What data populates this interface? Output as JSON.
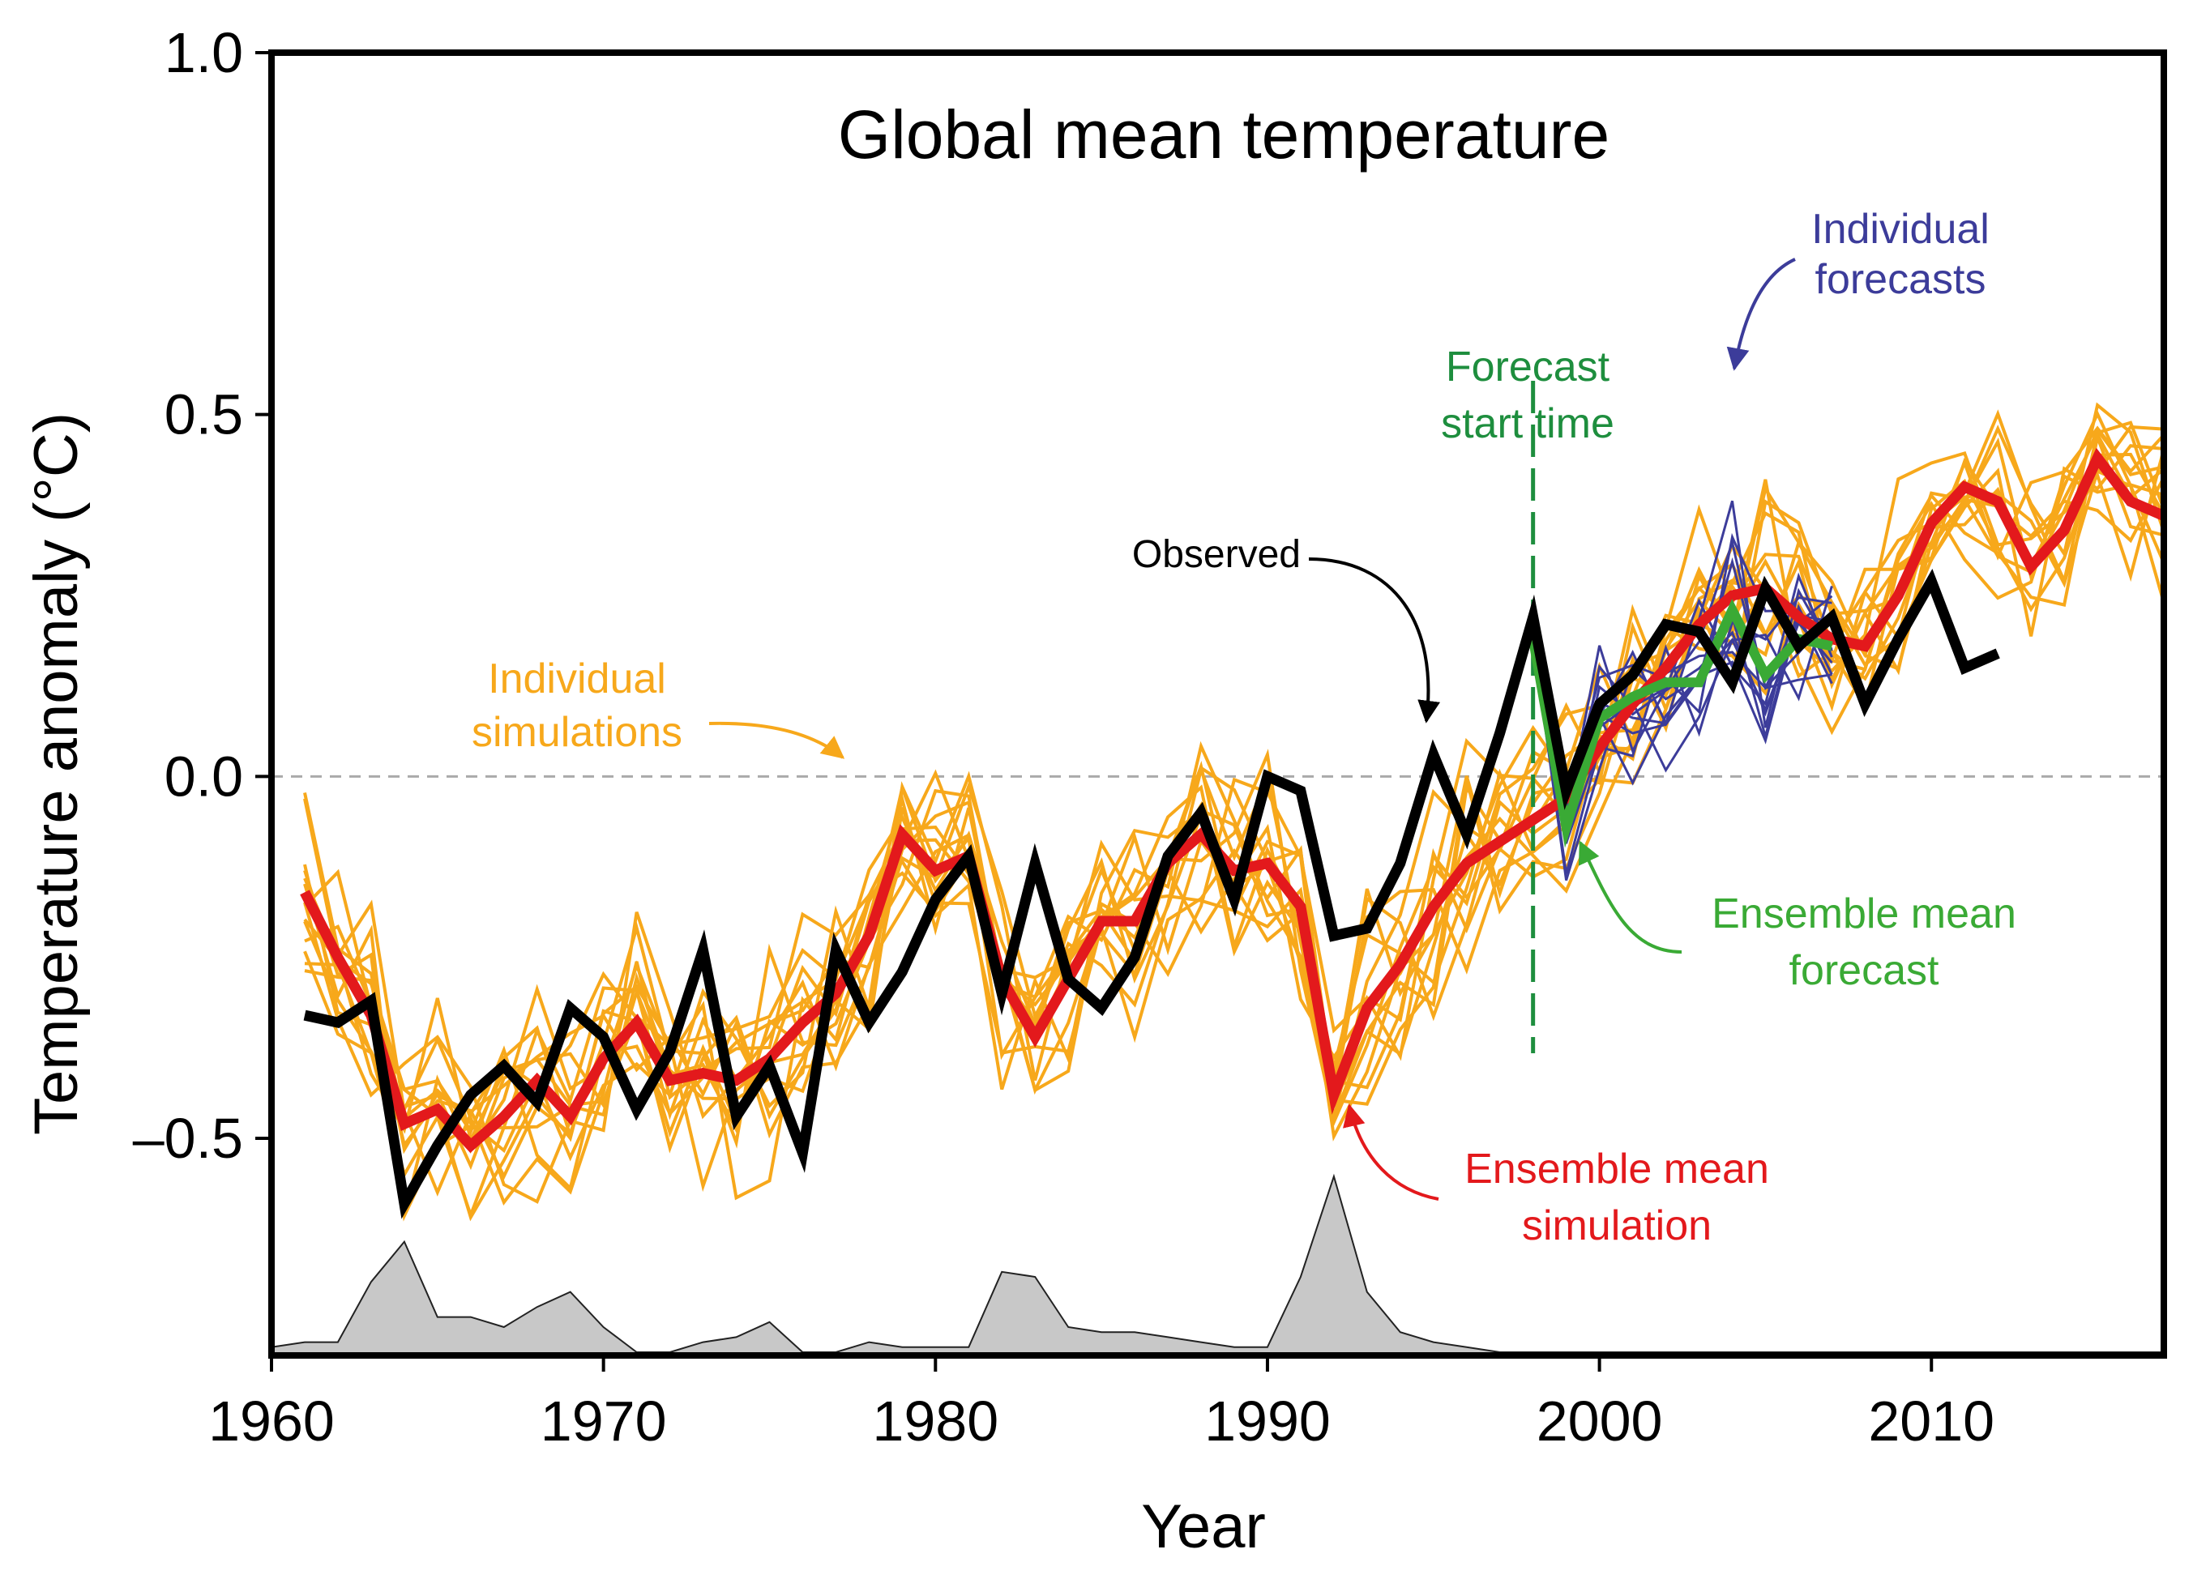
{
  "chart_data": {
    "type": "line",
    "title": "Global mean temperature",
    "xlabel": "Year",
    "ylabel": "Temperature anomaly (°C)",
    "xlim": [
      1960,
      2017
    ],
    "ylim": [
      -0.8,
      1.0
    ],
    "x_ticks": [
      1960,
      1970,
      1980,
      1990,
      2000,
      2010
    ],
    "y_ticks": [
      1.0,
      0.5,
      0.0,
      -0.5
    ],
    "y_tick_labels": [
      "1.0",
      "0.5",
      "0.0",
      "–0.5"
    ],
    "zero_line": true,
    "forecast_start_year": 1998,
    "annotations": {
      "individual_simulations": "Individual\nsimulations",
      "observed": "Observed",
      "forecast_start": "Forecast\nstart time",
      "individual_forecasts": "Individual\nforecasts",
      "ensemble_mean_forecast": "Ensemble mean\nforecast",
      "ensemble_mean_simulation": "Ensemble mean\nsimulation"
    },
    "colors": {
      "observed": "#000000",
      "ensemble_mean_simulation": "#e3191c",
      "individual_simulations": "#f7a81b",
      "individual_forecasts": "#3c3c9a",
      "ensemble_mean_forecast": "#3aaa35",
      "forecast_start": "#1e8e3e",
      "volcanic": "#c8c8c8"
    },
    "series": [
      {
        "name": "Observed",
        "x": [
          1961,
          1962,
          1963,
          1964,
          1965,
          1966,
          1967,
          1968,
          1969,
          1970,
          1971,
          1972,
          1973,
          1974,
          1975,
          1976,
          1977,
          1978,
          1979,
          1980,
          1981,
          1982,
          1983,
          1984,
          1985,
          1986,
          1987,
          1988,
          1989,
          1990,
          1991,
          1992,
          1993,
          1994,
          1995,
          1996,
          1997,
          1998,
          1999,
          2000,
          2001,
          2002,
          2003,
          2004,
          2005,
          2006,
          2007,
          2008,
          2009,
          2010,
          2011,
          2012
        ],
        "values": [
          -0.33,
          -0.34,
          -0.31,
          -0.59,
          -0.51,
          -0.44,
          -0.4,
          -0.45,
          -0.32,
          -0.36,
          -0.46,
          -0.38,
          -0.24,
          -0.47,
          -0.4,
          -0.52,
          -0.24,
          -0.34,
          -0.27,
          -0.17,
          -0.11,
          -0.3,
          -0.12,
          -0.28,
          -0.32,
          -0.25,
          -0.11,
          -0.05,
          -0.17,
          0.0,
          -0.02,
          -0.22,
          -0.21,
          -0.12,
          0.03,
          -0.08,
          0.06,
          0.22,
          -0.02,
          0.1,
          0.14,
          0.21,
          0.2,
          0.13,
          0.26,
          0.18,
          0.22,
          0.1,
          0.19,
          0.27,
          0.15,
          0.17
        ]
      },
      {
        "name": "Ensemble mean simulation",
        "x": [
          1961,
          1962,
          1963,
          1964,
          1965,
          1966,
          1967,
          1968,
          1969,
          1970,
          1971,
          1972,
          1973,
          1974,
          1975,
          1976,
          1977,
          1978,
          1979,
          1980,
          1981,
          1982,
          1983,
          1984,
          1985,
          1986,
          1987,
          1988,
          1989,
          1990,
          1991,
          1992,
          1993,
          1994,
          1995,
          1996,
          1997,
          1998,
          1999,
          2000,
          2001,
          2002,
          2003,
          2004,
          2005,
          2006,
          2007,
          2008,
          2009,
          2010,
          2011,
          2012,
          2013,
          2014,
          2015,
          2016,
          2017
        ],
        "values": [
          -0.16,
          -0.25,
          -0.33,
          -0.48,
          -0.46,
          -0.51,
          -0.47,
          -0.42,
          -0.47,
          -0.39,
          -0.34,
          -0.42,
          -0.41,
          -0.42,
          -0.39,
          -0.34,
          -0.3,
          -0.22,
          -0.08,
          -0.13,
          -0.11,
          -0.28,
          -0.36,
          -0.28,
          -0.2,
          -0.2,
          -0.12,
          -0.08,
          -0.13,
          -0.12,
          -0.18,
          -0.44,
          -0.32,
          -0.26,
          -0.18,
          -0.12,
          -0.09,
          -0.06,
          -0.03,
          0.04,
          0.1,
          0.15,
          0.21,
          0.25,
          0.26,
          0.22,
          0.19,
          0.18,
          0.25,
          0.35,
          0.4,
          0.38,
          0.29,
          0.34,
          0.44,
          0.38,
          0.36
        ]
      },
      {
        "name": "Ensemble mean forecast",
        "x": [
          1998,
          1999,
          2000,
          2001,
          2002,
          2003,
          2004,
          2005,
          2006,
          2007
        ],
        "values": [
          0.19,
          -0.07,
          0.08,
          0.11,
          0.13,
          0.13,
          0.23,
          0.14,
          0.19,
          0.18
        ]
      }
    ],
    "volcanic_forcing": {
      "x": [
        1960,
        1961,
        1962,
        1963,
        1964,
        1965,
        1966,
        1967,
        1968,
        1969,
        1970,
        1971,
        1972,
        1973,
        1974,
        1975,
        1976,
        1977,
        1978,
        1979,
        1980,
        1981,
        1982,
        1983,
        1984,
        1985,
        1986,
        1987,
        1988,
        1989,
        1990,
        1991,
        1992,
        1993,
        1994,
        1995,
        1996,
        1997,
        1998,
        1999,
        2000,
        2017
      ],
      "values": [
        0.01,
        0.02,
        0.02,
        0.14,
        0.22,
        0.07,
        0.07,
        0.05,
        0.09,
        0.12,
        0.05,
        0.0,
        0.0,
        0.02,
        0.03,
        0.06,
        0.0,
        0.0,
        0.02,
        0.01,
        0.01,
        0.01,
        0.16,
        0.15,
        0.05,
        0.04,
        0.04,
        0.03,
        0.02,
        0.01,
        0.01,
        0.15,
        0.35,
        0.12,
        0.04,
        0.02,
        0.01,
        0.0,
        0.0,
        0.0,
        0.0,
        0.0
      ]
    }
  }
}
